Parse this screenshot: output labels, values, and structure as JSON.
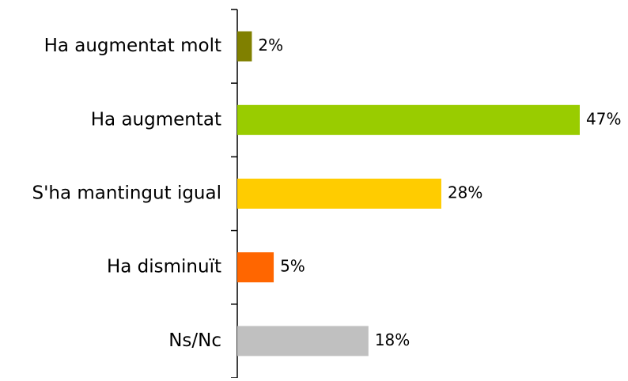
{
  "chart_data": {
    "type": "barh",
    "categories": [
      "Ha augmentat molt",
      "Ha augmentat",
      "S'ha mantingut igual",
      "Ha disminuït",
      "Ns/Nc"
    ],
    "values": [
      2,
      47,
      28,
      5,
      18
    ],
    "value_labels": [
      "2%",
      "47%",
      "28%",
      "5%",
      "18%"
    ],
    "colors": [
      "#808000",
      "#99cc00",
      "#ffcc00",
      "#ff6600",
      "#c0c0c0"
    ]
  }
}
